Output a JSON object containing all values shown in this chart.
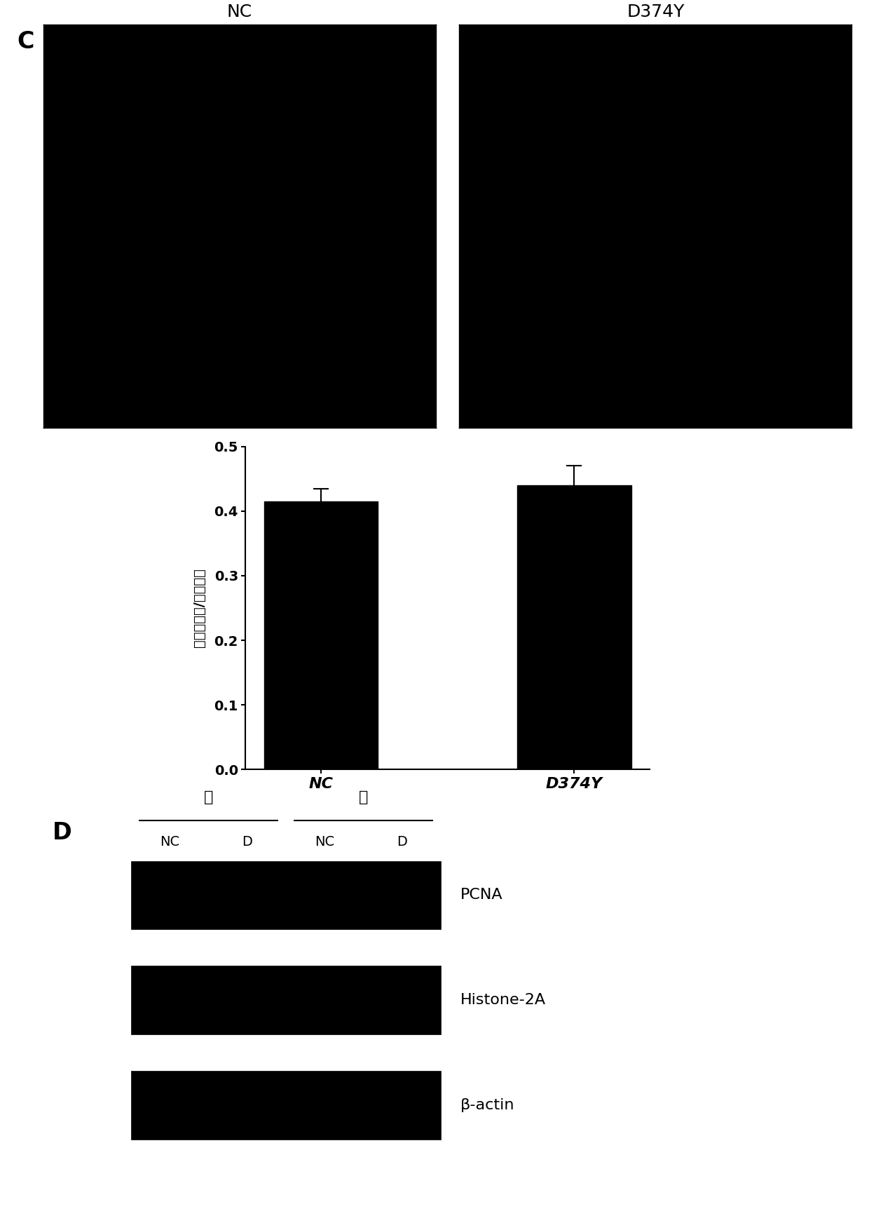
{
  "panel_C_label": "C",
  "panel_D_label": "D",
  "image_labels_top": [
    "NC",
    "D374Y"
  ],
  "bar_categories": [
    "NC",
    "D374Y"
  ],
  "bar_values": [
    0.415,
    0.44
  ],
  "bar_errors": [
    0.02,
    0.03
  ],
  "bar_color": "#000000",
  "ylabel": "分裂细胞数/总细胞数",
  "ylim": [
    0.0,
    0.5
  ],
  "yticks": [
    0.0,
    0.1,
    0.2,
    0.3,
    0.4,
    0.5
  ],
  "panel_D_header_labels": [
    "质",
    "核"
  ],
  "panel_D_col_labels": [
    "NC",
    "D",
    "NC",
    "D"
  ],
  "panel_D_band_labels": [
    "PCNA",
    "Histone-2A",
    "β-actin"
  ],
  "bg_color": "#ffffff",
  "black": "#000000"
}
